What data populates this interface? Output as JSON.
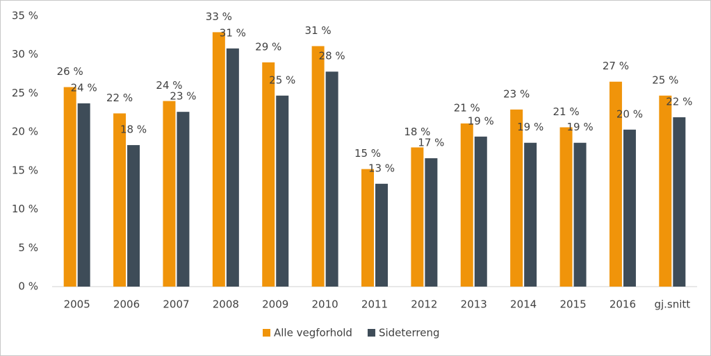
{
  "chart_data": {
    "type": "bar",
    "categories": [
      "2005",
      "2006",
      "2007",
      "2008",
      "2009",
      "2010",
      "2011",
      "2012",
      "2013",
      "2014",
      "2015",
      "2016",
      "gj.snitt"
    ],
    "series": [
      {
        "name": "Alle vegforhold",
        "color": "#f0940a",
        "values": [
          25.8,
          22.4,
          24.0,
          32.9,
          29.0,
          31.1,
          15.2,
          18.0,
          21.1,
          22.9,
          20.6,
          26.5,
          24.7
        ],
        "value_labels": [
          "26 %",
          "22 %",
          "24 %",
          "33 %",
          "29 %",
          "31 %",
          "15 %",
          "18 %",
          "21 %",
          "23 %",
          "21 %",
          "27 %",
          "25 %"
        ]
      },
      {
        "name": "Sideterreng",
        "color": "#3e4c58",
        "values": [
          23.7,
          18.3,
          22.6,
          30.8,
          24.7,
          27.8,
          13.3,
          16.6,
          19.4,
          18.6,
          18.6,
          20.3,
          21.9
        ],
        "value_labels": [
          "24 %",
          "18 %",
          "23 %",
          "31 %",
          "25 %",
          "28 %",
          "13 %",
          "17 %",
          "19 %",
          "19 %",
          "19 %",
          "20 %",
          "22 %"
        ]
      }
    ],
    "ylim": [
      0,
      35
    ],
    "yticks": [
      {
        "value": 0,
        "label": "0 %"
      },
      {
        "value": 5,
        "label": "5 %"
      },
      {
        "value": 10,
        "label": "10 %"
      },
      {
        "value": 15,
        "label": "15 %"
      },
      {
        "value": 20,
        "label": "20 %"
      },
      {
        "value": 25,
        "label": "25 %"
      },
      {
        "value": 30,
        "label": "30 %"
      },
      {
        "value": 35,
        "label": "35 %"
      }
    ],
    "grid": false,
    "legend": "bottom"
  }
}
